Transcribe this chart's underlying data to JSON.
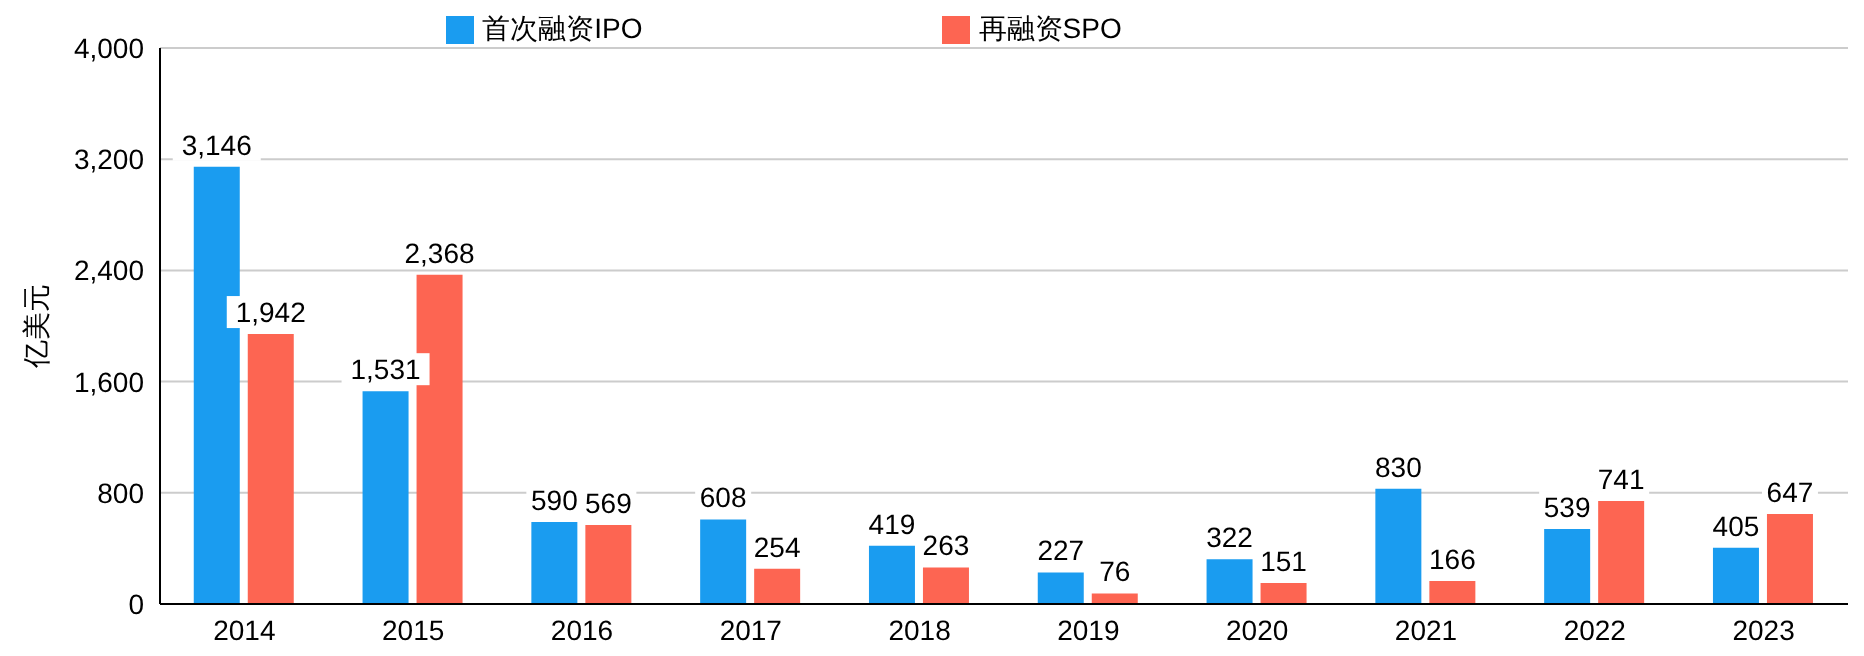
{
  "chart_data": {
    "type": "bar",
    "ylabel": "亿美元",
    "categories": [
      "2014",
      "2015",
      "2016",
      "2017",
      "2018",
      "2019",
      "2020",
      "2021",
      "2022",
      "2023"
    ],
    "series": [
      {
        "name": "首次融资IPO",
        "color": "#1a9cf0",
        "values": [
          3146,
          1531,
          590,
          608,
          419,
          227,
          322,
          830,
          539,
          405
        ],
        "value_labels": [
          "3,146",
          "1,531",
          "590",
          "608",
          "419",
          "227",
          "322",
          "830",
          "539",
          "405"
        ]
      },
      {
        "name": "再融资SPO",
        "color": "#fd6552",
        "values": [
          1942,
          2368,
          569,
          254,
          263,
          76,
          151,
          166,
          741,
          647
        ],
        "value_labels": [
          "1,942",
          "2,368",
          "569",
          "254",
          "263",
          "76",
          "151",
          "166",
          "741",
          "647"
        ]
      }
    ],
    "ylim": [
      0,
      4000
    ],
    "yticks": [
      0,
      800,
      {
        "value": 1600,
        "label": "1,600"
      },
      {
        "value": 2400,
        "label": "2,400"
      },
      {
        "value": 3200,
        "label": "3,200"
      },
      {
        "value": 4000,
        "label": "4,000"
      }
    ],
    "grid": "y",
    "legend": "top"
  }
}
